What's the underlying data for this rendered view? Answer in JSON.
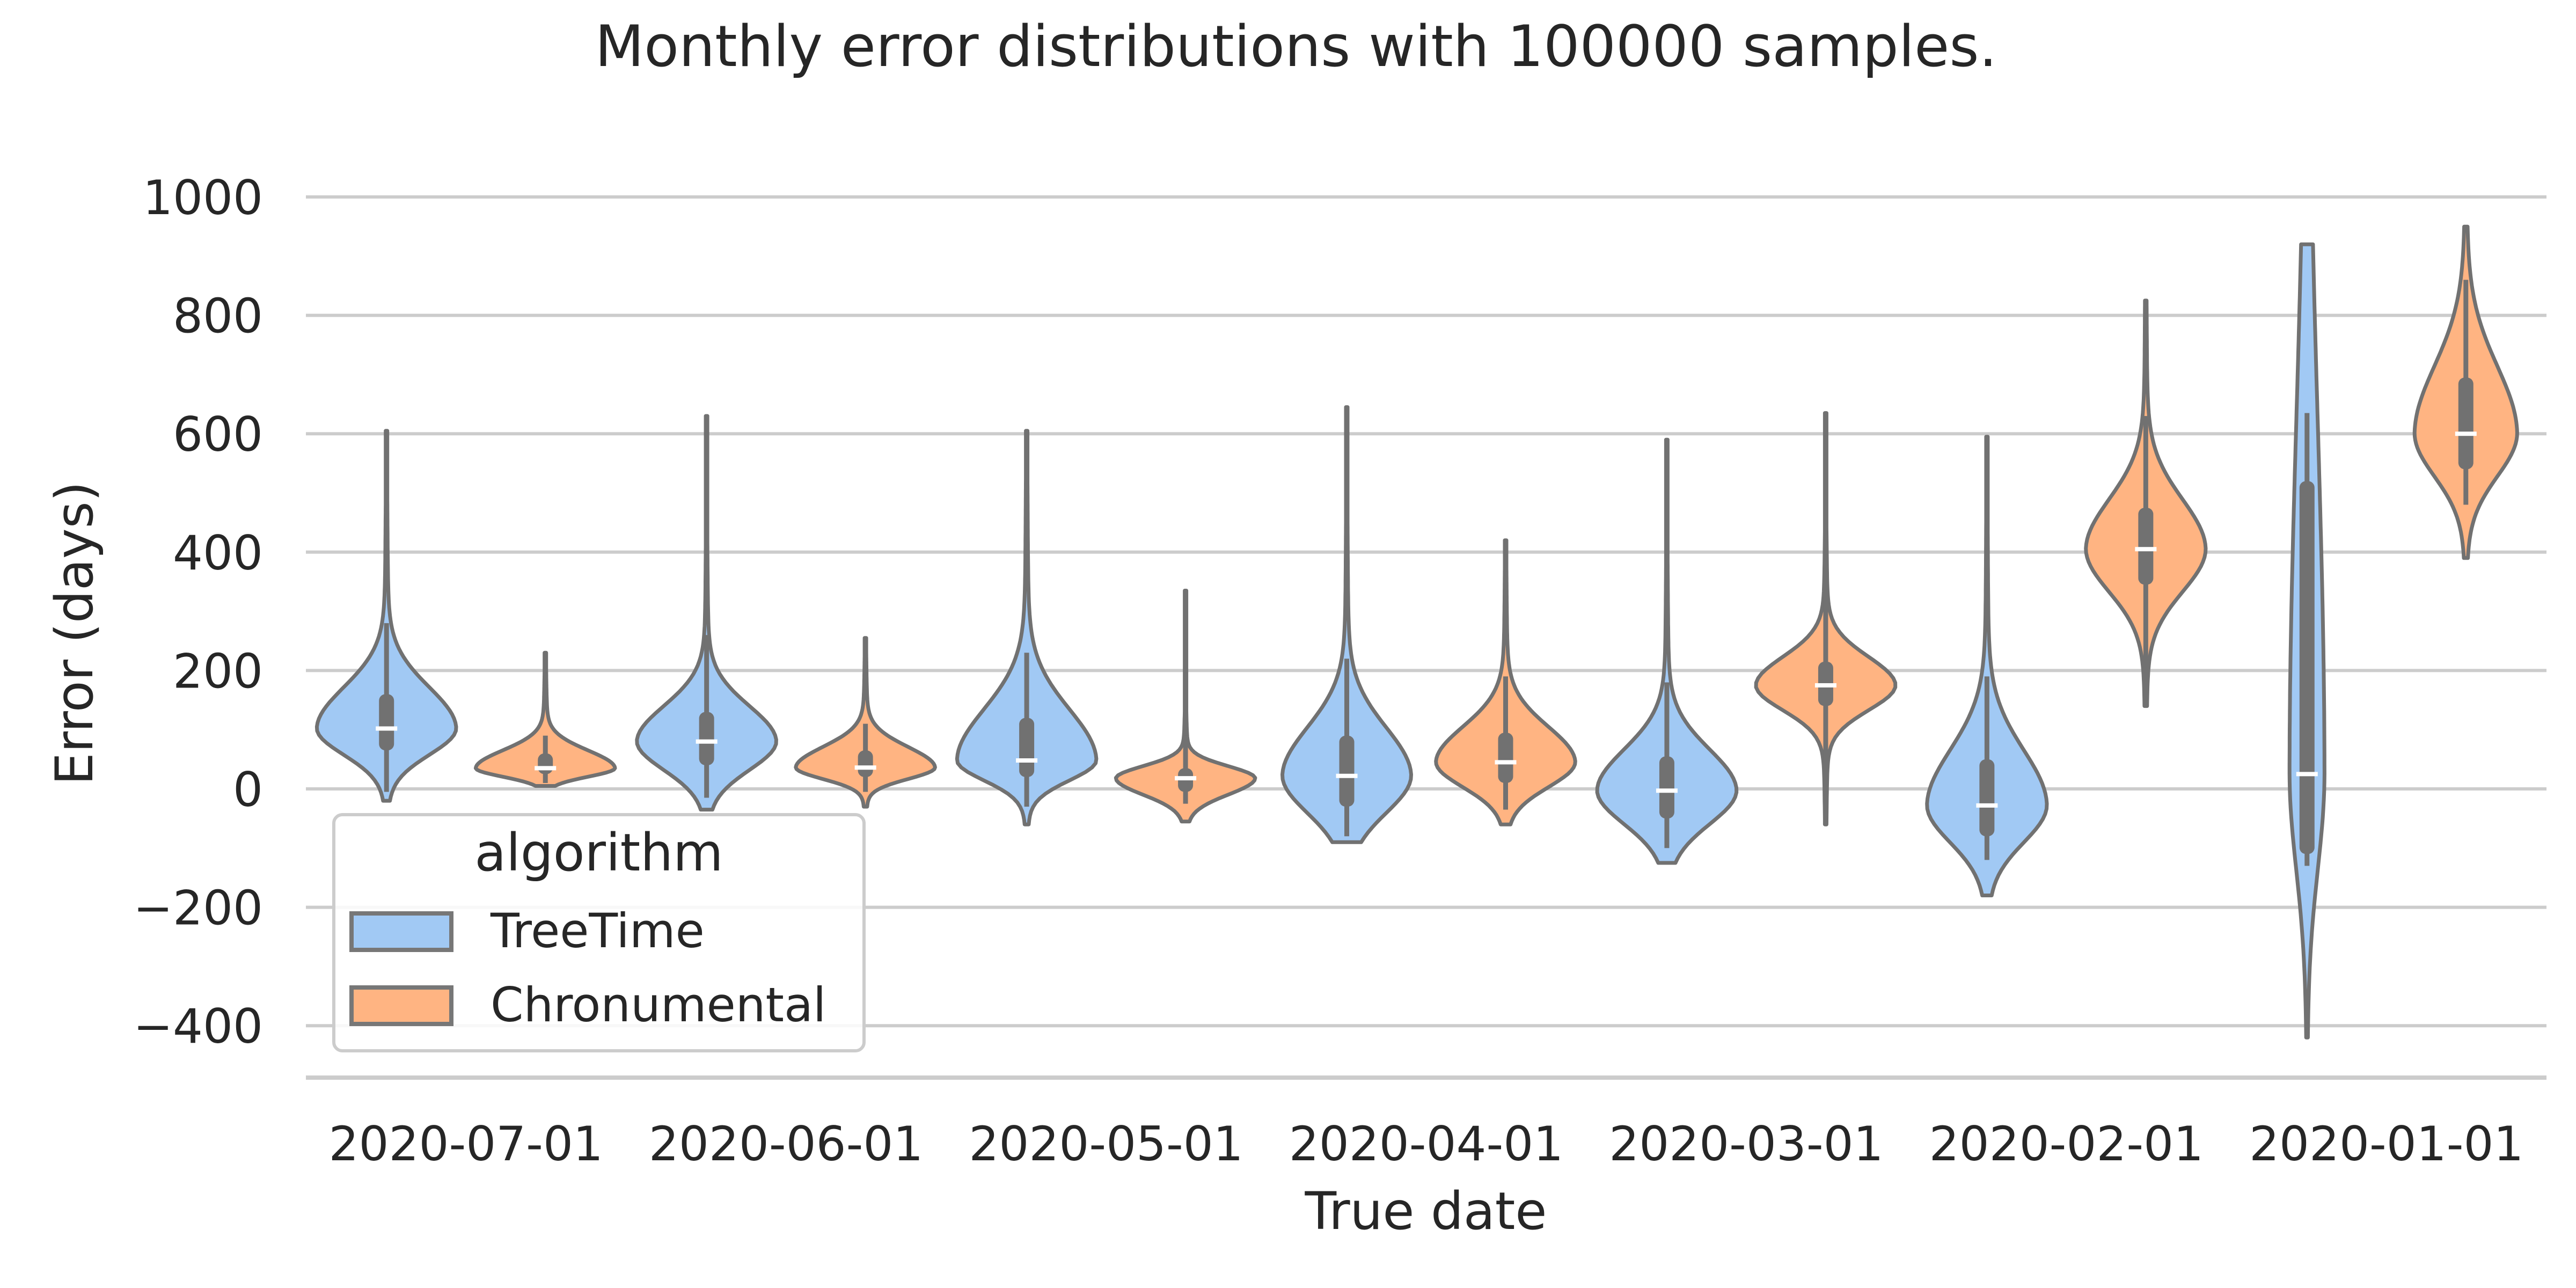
{
  "chart_data": {
    "type": "violin",
    "title": "Monthly error distributions with 100000 samples.",
    "xlabel": "True date",
    "ylabel": "Error (days)",
    "ylim": [
      -490,
      1080
    ],
    "yticks": [
      -400,
      -200,
      0,
      200,
      400,
      600,
      800,
      1000
    ],
    "ytick_labels": [
      "−400",
      "−200",
      "0",
      "200",
      "400",
      "600",
      "800",
      "1000"
    ],
    "grid": true,
    "categories": [
      "2020-07-01",
      "2020-06-01",
      "2020-05-01",
      "2020-04-01",
      "2020-03-01",
      "2020-02-01",
      "2020-01-01"
    ],
    "legend": {
      "title": "algorithm",
      "placement": "lower-left",
      "entries": [
        "TreeTime",
        "Chronumental"
      ]
    },
    "series": [
      {
        "name": "TreeTime",
        "color": "#a1c9f4",
        "stats": [
          {
            "category": "2020-07-01",
            "min": -20,
            "q1": 65,
            "median": 102,
            "q3": 160,
            "max": 605,
            "whisker_low": -5,
            "whisker_high": 280
          },
          {
            "category": "2020-06-01",
            "min": -35,
            "q1": 40,
            "median": 80,
            "q3": 130,
            "max": 630,
            "whisker_low": -15,
            "whisker_high": 260
          },
          {
            "category": "2020-05-01",
            "min": -60,
            "q1": 20,
            "median": 48,
            "q3": 120,
            "max": 605,
            "whisker_low": -30,
            "whisker_high": 230
          },
          {
            "category": "2020-04-01",
            "min": -90,
            "q1": -30,
            "median": 22,
            "q3": 90,
            "max": 645,
            "whisker_low": -80,
            "whisker_high": 220
          },
          {
            "category": "2020-03-01",
            "min": -125,
            "q1": -50,
            "median": -3,
            "q3": 55,
            "max": 590,
            "whisker_low": -100,
            "whisker_high": 180
          },
          {
            "category": "2020-02-01",
            "min": -180,
            "q1": -80,
            "median": -28,
            "q3": 50,
            "max": 595,
            "whisker_low": -120,
            "whisker_high": 190
          },
          {
            "category": "2020-01-01",
            "min": -420,
            "q1": -110,
            "median": 25,
            "q3": 520,
            "max": 920,
            "whisker_low": -130,
            "whisker_high": 635
          }
        ]
      },
      {
        "name": "Chronumental",
        "color": "#ffb482",
        "stats": [
          {
            "category": "2020-07-01",
            "min": 5,
            "q1": 25,
            "median": 35,
            "q3": 60,
            "max": 230,
            "whisker_low": 10,
            "whisker_high": 90
          },
          {
            "category": "2020-06-01",
            "min": -30,
            "q1": 20,
            "median": 36,
            "q3": 65,
            "max": 255,
            "whisker_low": -5,
            "whisker_high": 110
          },
          {
            "category": "2020-05-01",
            "min": -55,
            "q1": -5,
            "median": 18,
            "q3": 35,
            "max": 335,
            "whisker_low": -25,
            "whisker_high": 90
          },
          {
            "category": "2020-04-01",
            "min": -60,
            "q1": 10,
            "median": 45,
            "q3": 95,
            "max": 420,
            "whisker_low": -35,
            "whisker_high": 190
          },
          {
            "category": "2020-03-01",
            "min": -60,
            "q1": 140,
            "median": 175,
            "q3": 215,
            "max": 635,
            "whisker_low": -40,
            "whisker_high": 400
          },
          {
            "category": "2020-02-01",
            "min": 140,
            "q1": 345,
            "median": 405,
            "q3": 475,
            "max": 825,
            "whisker_low": 180,
            "whisker_high": 630
          },
          {
            "category": "2020-01-01",
            "min": 390,
            "q1": 540,
            "median": 600,
            "q3": 695,
            "max": 950,
            "whisker_low": 480,
            "whisker_high": 860
          }
        ]
      }
    ]
  }
}
